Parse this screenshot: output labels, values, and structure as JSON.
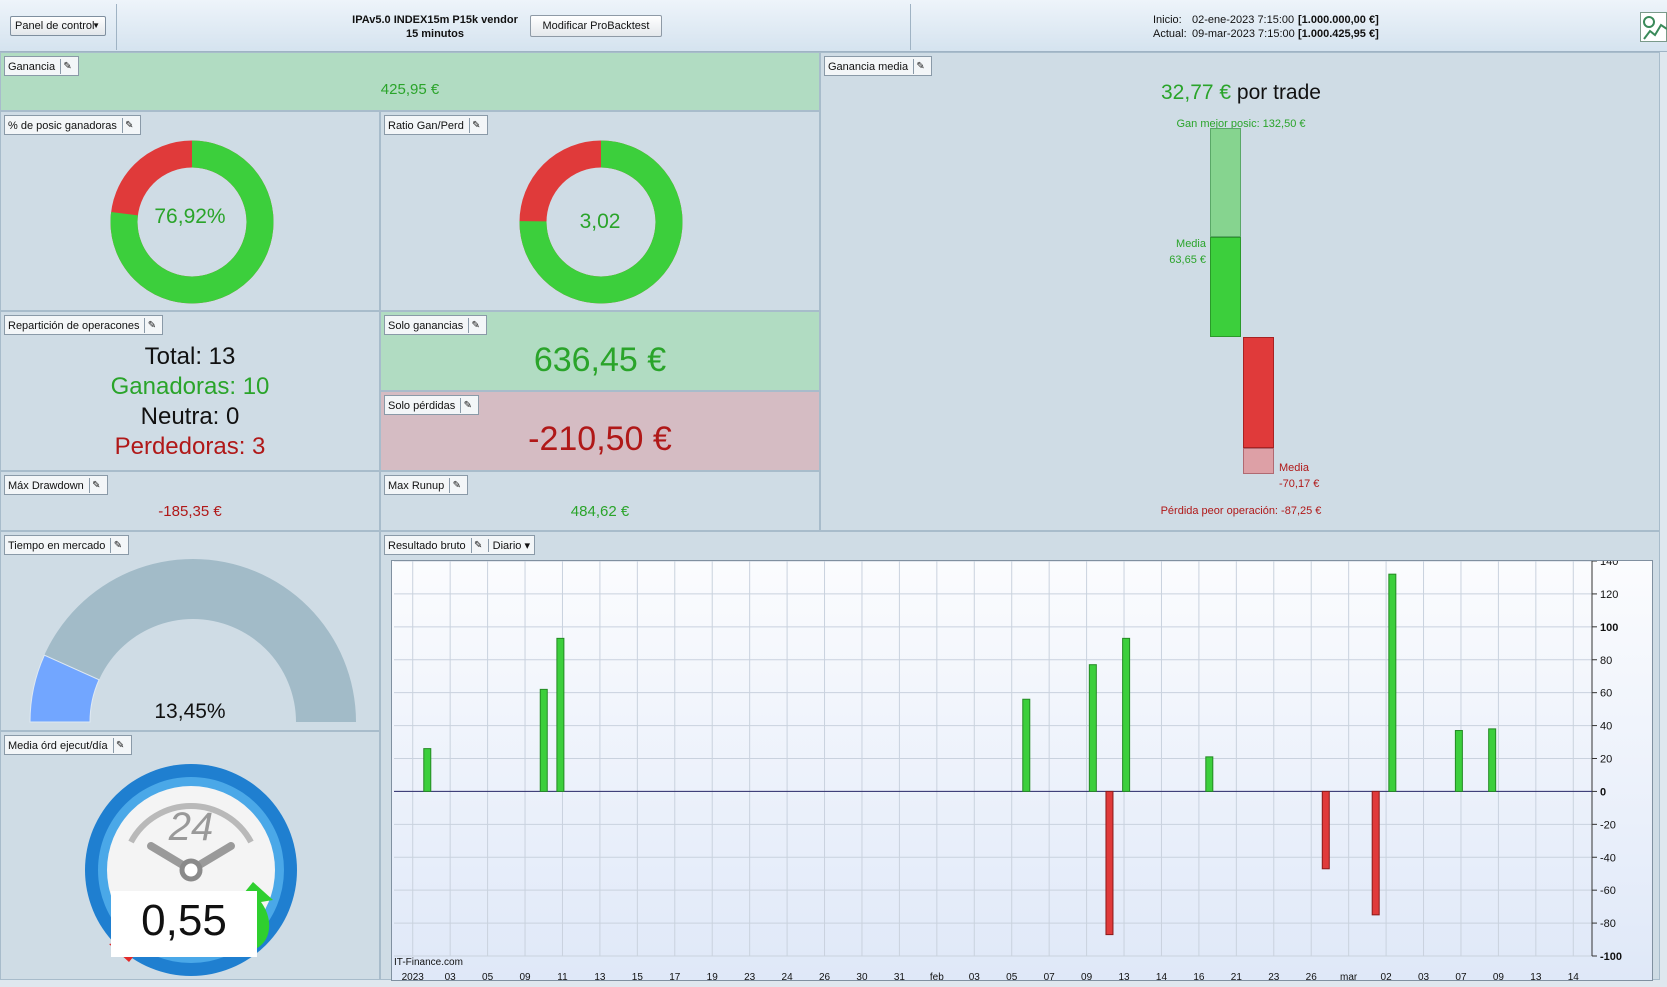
{
  "toolbar": {
    "panel_dropdown": "Panel de control",
    "strategy_line1": "IPAv5.0 INDEX15m P15k vendor",
    "strategy_line2": "15 minutos",
    "modify_button": "Modificar ProBacktest",
    "start_label": "Inicio:",
    "start_date": "02-ene-2023 7:15:00",
    "start_value": "[1.000.000,00 €]",
    "current_label": "Actual:",
    "current_date": "09-mar-2023 7:15:00",
    "current_value": "[1.000.425,95 €]"
  },
  "ganancia": {
    "label": "Ganancia",
    "value": "425,95 €"
  },
  "pct_ganadoras": {
    "label": "% de posic ganadoras",
    "value": "76,92%",
    "fraction": 0.7692
  },
  "ratio": {
    "label": "Ratio Gan/Perd",
    "value": "3,02",
    "fraction": 0.7514
  },
  "reparticion": {
    "label": "Repartición de operacones",
    "total": "Total: 13",
    "ganadoras": "Ganadoras: 10",
    "neutra": "Neutra: 0",
    "perdedoras": "Perdedoras: 3"
  },
  "solo_ganancias": {
    "label": "Solo ganancias",
    "value": "636,45 €"
  },
  "solo_perdidas": {
    "label": "Solo pérdidas",
    "value": "-210,50 €"
  },
  "max_drawdown": {
    "label": "Máx Drawdown",
    "value": "-185,35 €"
  },
  "max_runup": {
    "label": "Max Runup",
    "value": "484,62 €"
  },
  "ganancia_media": {
    "label": "Ganancia media",
    "value": "32,77 €",
    "suffix": "por trade",
    "best_label": "Gan mejor posic: 132,50 €",
    "media_pos_label": "Media",
    "media_pos_value": "63,65 €",
    "media_neg_label": "Media",
    "media_neg_value": "-70,17 €",
    "worst_label": "Pérdida peor operación: -87,25 €",
    "best": 132.5,
    "avg_win": 63.65,
    "avg_loss": -70.17,
    "worst": -87.25
  },
  "tiempo_mercado": {
    "label": "Tiempo en mercado",
    "value": "13,45%",
    "fraction": 0.1345
  },
  "media_ordenes": {
    "label": "Media órd ejecut/día",
    "value": "0,55",
    "clock_number": "24"
  },
  "resultado_bruto": {
    "label": "Resultado bruto",
    "period_dropdown": "Diario",
    "watermark": "IT-Finance.com"
  },
  "colors": {
    "green": "#3ccf3c",
    "red": "#e03a3a",
    "win_text": "#2aa42a",
    "loss_text": "#b01818"
  },
  "chart_data": {
    "type": "bar",
    "ylim": [
      -100,
      140
    ],
    "yticks": [
      140,
      120,
      100,
      80,
      60,
      40,
      20,
      0,
      -20,
      -40,
      -60,
      -80,
      -100
    ],
    "xlim": [
      "2023-01-02",
      "2023-03-15"
    ],
    "xtick_labels": [
      "2023",
      "03",
      "05",
      "09",
      "11",
      "13",
      "15",
      "17",
      "19",
      "23",
      "24",
      "26",
      "30",
      "31",
      "feb",
      "03",
      "05",
      "07",
      "09",
      "13",
      "14",
      "16",
      "21",
      "23",
      "26",
      "mar",
      "02",
      "03",
      "07",
      "09",
      "13",
      "14"
    ],
    "points": [
      {
        "x": "2023-01-04",
        "y": 26
      },
      {
        "x": "2023-01-11",
        "y": 62
      },
      {
        "x": "2023-01-12",
        "y": 93
      },
      {
        "x": "2023-02-09",
        "y": 56
      },
      {
        "x": "2023-02-13",
        "y": 77
      },
      {
        "x": "2023-02-14",
        "y": -87
      },
      {
        "x": "2023-02-15",
        "y": 93
      },
      {
        "x": "2023-02-20",
        "y": 21
      },
      {
        "x": "2023-02-27",
        "y": -47
      },
      {
        "x": "2023-03-02",
        "y": -75
      },
      {
        "x": "2023-03-03",
        "y": 132
      },
      {
        "x": "2023-03-07",
        "y": 37
      },
      {
        "x": "2023-03-09",
        "y": 38
      }
    ]
  }
}
